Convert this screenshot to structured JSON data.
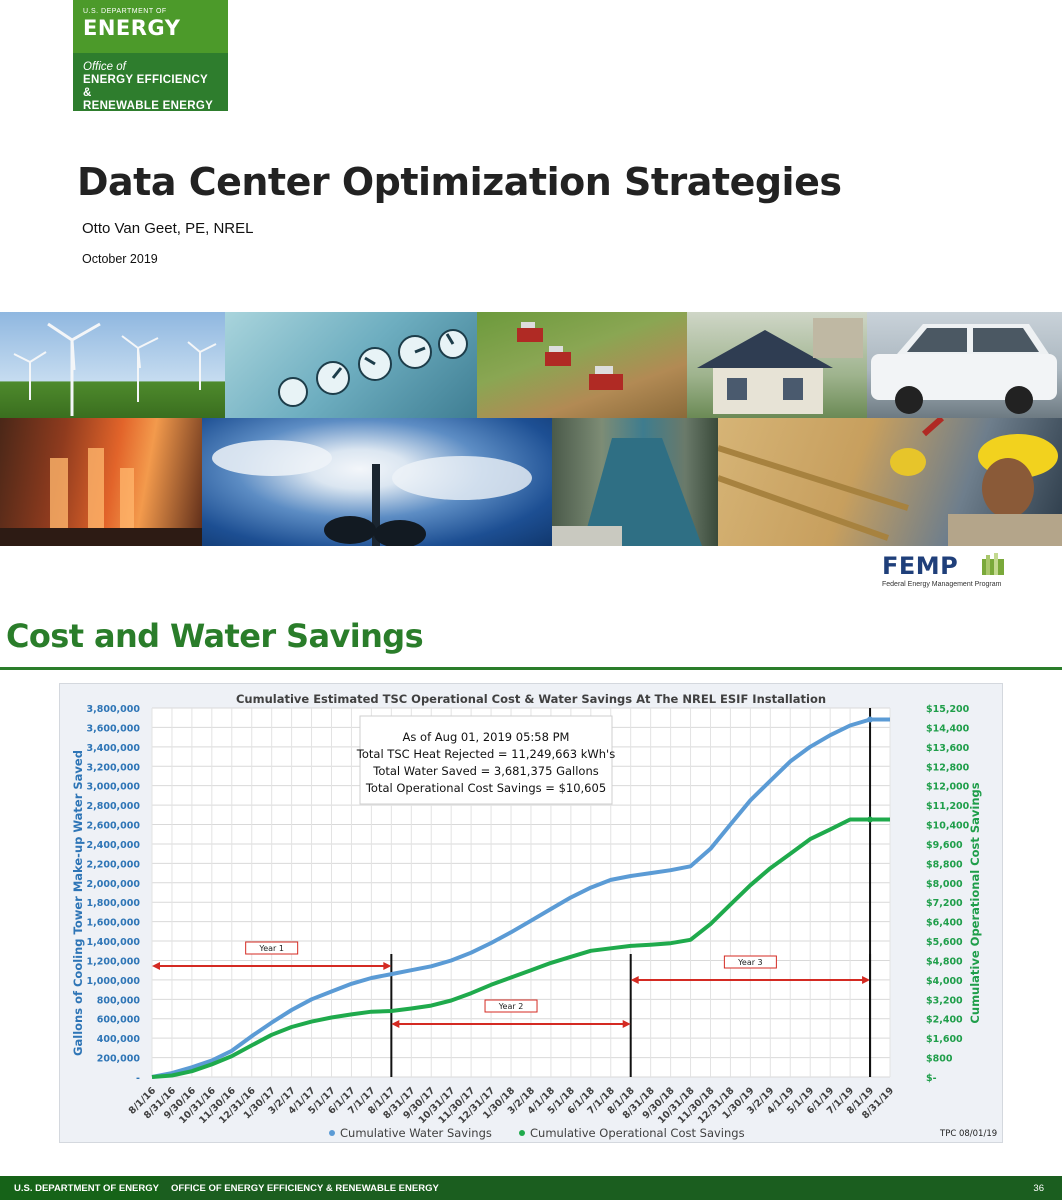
{
  "doe_logo": {
    "dept": "U.S. DEPARTMENT OF",
    "energy": "ENERGY",
    "office_of": "Office of",
    "eere_line1": "ENERGY EFFICIENCY &",
    "eere_line2": "RENEWABLE ENERGY"
  },
  "title_slide": {
    "title": "Data Center Optimization Strategies",
    "author": "Otto Van Geet, PE, NREL",
    "date": "October 2019"
  },
  "femp_logo": {
    "name": "FEMP",
    "subtitle": "Federal Energy Management Program"
  },
  "slide2": {
    "title": "Cost and Water Savings"
  },
  "chart_data": {
    "type": "line",
    "title": "Cumulative Estimated TSC Operational Cost & Water Savings At The NREL ESIF Installation",
    "ylabel_left": "Gallons of Cooling Tower Make-up Water Saved",
    "ylabel_right": "Cumulative Operational Cost Savings",
    "ylim_left": [
      0,
      3800000
    ],
    "ylim_right": [
      0,
      15200
    ],
    "left_ticks": [
      "-",
      "200,000",
      "400,000",
      "600,000",
      "800,000",
      "1,000,000",
      "1,200,000",
      "1,400,000",
      "1,600,000",
      "1,800,000",
      "2,000,000",
      "2,200,000",
      "2,400,000",
      "2,600,000",
      "2,800,000",
      "3,000,000",
      "3,200,000",
      "3,400,000",
      "3,600,000",
      "3,800,000"
    ],
    "right_ticks": [
      "$-",
      "$800",
      "$1,600",
      "$2,400",
      "$3,200",
      "$4,000",
      "$4,800",
      "$5,600",
      "$6,400",
      "$7,200",
      "$8,000",
      "$8,800",
      "$9,600",
      "$10,400",
      "$11,200",
      "$12,000",
      "$12,800",
      "$13,600",
      "$14,400",
      "$15,200"
    ],
    "categories": [
      "8/1/16",
      "8/31/16",
      "9/30/16",
      "10/31/16",
      "11/30/16",
      "12/31/16",
      "1/30/17",
      "3/2/17",
      "4/1/17",
      "5/1/17",
      "6/1/17",
      "7/1/17",
      "8/1/17",
      "8/31/17",
      "9/30/17",
      "10/31/17",
      "11/30/17",
      "12/31/17",
      "1/30/18",
      "3/2/18",
      "4/1/18",
      "5/1/18",
      "6/1/18",
      "7/1/18",
      "8/1/18",
      "8/31/18",
      "9/30/18",
      "10/31/18",
      "11/30/18",
      "12/31/18",
      "1/30/19",
      "3/2/19",
      "4/1/19",
      "5/1/19",
      "6/1/19",
      "7/1/19",
      "8/1/19",
      "8/31/19"
    ],
    "series": [
      {
        "name": "Cumulative Water Savings",
        "axis": "left",
        "color": "#5b9bd5",
        "values": [
          0,
          40000,
          100000,
          170000,
          270000,
          420000,
          560000,
          690000,
          800000,
          880000,
          960000,
          1020000,
          1060000,
          1100000,
          1140000,
          1200000,
          1280000,
          1380000,
          1490000,
          1610000,
          1730000,
          1850000,
          1950000,
          2030000,
          2070000,
          2100000,
          2130000,
          2170000,
          2350000,
          2600000,
          2850000,
          3050000,
          3250000,
          3400000,
          3520000,
          3620000,
          3681375,
          3681375
        ]
      },
      {
        "name": "Cumulative Operational Cost Savings",
        "axis": "right",
        "color": "#1faa4c",
        "values": [
          0,
          60,
          240,
          520,
          860,
          1300,
          1740,
          2060,
          2280,
          2450,
          2580,
          2690,
          2720,
          2820,
          2940,
          3150,
          3450,
          3800,
          4100,
          4400,
          4700,
          4950,
          5200,
          5300,
          5400,
          5450,
          5510,
          5650,
          6300,
          7100,
          7900,
          8600,
          9200,
          9800,
          10200,
          10605,
          10605,
          10605
        ]
      }
    ],
    "annotation": {
      "line1": "As of Aug 01, 2019 05:58 PM",
      "line2": "Total TSC Heat Rejected = 11,249,663 kWh's",
      "line3": "Total Water Saved = 3,681,375 Gallons",
      "line4": "Total Operational Cost Savings = $10,605"
    },
    "periods": [
      {
        "label": "Year 1",
        "from": "8/1/16",
        "to": "8/1/17"
      },
      {
        "label": "Year 2",
        "from": "8/1/17",
        "to": "8/1/18"
      },
      {
        "label": "Year 3",
        "from": "8/1/18",
        "to": "8/1/19"
      }
    ],
    "legend_position": "bottom",
    "footnote": "TPC 08/01/19",
    "grid": true
  },
  "footer": {
    "left": "U.S. DEPARTMENT OF ENERGY",
    "mid": "OFFICE OF ENERGY EFFICIENCY & RENEWABLE ENERGY",
    "page": "36"
  }
}
